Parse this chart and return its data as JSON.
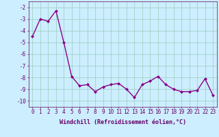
{
  "x": [
    0,
    1,
    2,
    3,
    4,
    5,
    6,
    7,
    8,
    9,
    10,
    11,
    12,
    13,
    14,
    15,
    16,
    17,
    18,
    19,
    20,
    21,
    22,
    23
  ],
  "y": [
    -4.5,
    -3.0,
    -3.2,
    -2.3,
    -5.0,
    -7.9,
    -8.7,
    -8.6,
    -9.2,
    -8.8,
    -8.6,
    -8.5,
    -9.0,
    -9.7,
    -8.6,
    -8.3,
    -7.9,
    -8.6,
    -9.0,
    -9.2,
    -9.2,
    -9.1,
    -8.1,
    -9.5
  ],
  "line_color": "#880088",
  "marker": "D",
  "marker_size": 2.0,
  "background_color": "#cceeff",
  "grid_color": "#99ccbb",
  "xlabel": "Windchill (Refroidissement éolien,°C)",
  "xlabel_fontsize": 6.0,
  "ylim": [
    -10.5,
    -1.5
  ],
  "yticks": [
    -2,
    -3,
    -4,
    -5,
    -6,
    -7,
    -8,
    -9,
    -10
  ],
  "xticks": [
    0,
    1,
    2,
    3,
    4,
    5,
    6,
    7,
    8,
    9,
    10,
    11,
    12,
    13,
    14,
    15,
    16,
    17,
    18,
    19,
    20,
    21,
    22,
    23
  ],
  "tick_fontsize": 5.5,
  "line_width": 1.0
}
